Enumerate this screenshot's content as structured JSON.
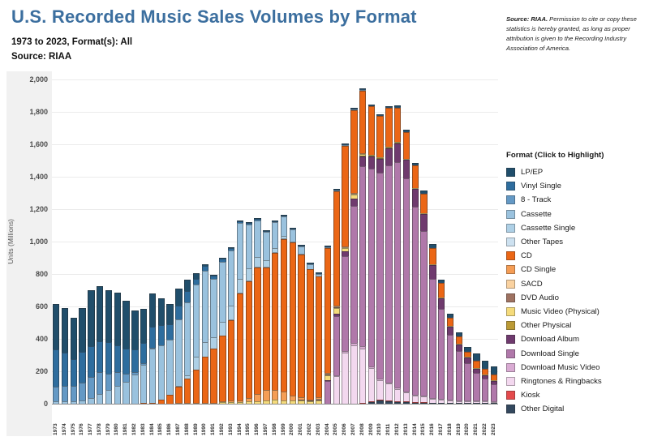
{
  "header": {
    "title": "U.S. Recorded Music Sales Volumes by Format",
    "subtitle_line1": "1973 to 2023, Format(s): All",
    "subtitle_line2": "Source: RIAA"
  },
  "source_note": {
    "bold": "Source: RIAA.",
    "text": " Permission to cite or copy these statistics is hereby granted, as long as proper attribution is given to the Recording Industry Association of America."
  },
  "legend": {
    "title": "Format (Click to Highlight)"
  },
  "chart_data": {
    "type": "bar",
    "stacked": true,
    "stack_order": "first series at top of stack",
    "title": "U.S. Recorded Music Sales Volumes by Format",
    "xlabel": "",
    "ylabel": "Units (Millions)",
    "ylim": [
      0,
      2000
    ],
    "ytick_interval": 200,
    "grid": true,
    "legend_position": "right",
    "categories": [
      1973,
      1974,
      1975,
      1976,
      1977,
      1978,
      1979,
      1980,
      1981,
      1982,
      1983,
      1984,
      1985,
      1986,
      1987,
      1988,
      1989,
      1990,
      1991,
      1992,
      1993,
      1994,
      1995,
      1996,
      1997,
      1998,
      1999,
      2000,
      2001,
      2002,
      2003,
      2004,
      2005,
      2006,
      2007,
      2008,
      2009,
      2010,
      2011,
      2012,
      2013,
      2014,
      2015,
      2016,
      2017,
      2018,
      2019,
      2020,
      2021,
      2022,
      2023
    ],
    "series": [
      {
        "name": "LP/EP",
        "color": "#204e6b",
        "values": [
          280,
          276,
          257,
          273,
          344,
          341,
          318,
          323,
          295,
          244,
          210,
          205,
          167,
          125,
          107,
          72,
          35,
          12,
          4.8,
          2.3,
          1.2,
          1.9,
          2.2,
          2.9,
          2.7,
          3.4,
          2.9,
          2.2,
          2.3,
          1.7,
          1.5,
          1.4,
          1,
          0.9,
          1.3,
          2.9,
          3.5,
          4.2,
          5.5,
          6.1,
          9.4,
          13.1,
          16.9,
          17.2,
          15.6,
          16.7,
          18.8,
          22.9,
          39.7,
          43.5,
          43.2
        ]
      },
      {
        "name": "Vinyl Single",
        "color": "#2e6d9e",
        "values": [
          228,
          204,
          164,
          190,
          190,
          190,
          196,
          164,
          155,
          137,
          125,
          132,
          121,
          94,
          82,
          66,
          37,
          28,
          22,
          19.8,
          15.1,
          11.7,
          10.2,
          10.1,
          7.5,
          5.4,
          5.3,
          4.8,
          5.5,
          4.4,
          3.8,
          3.5,
          1,
          0.7,
          0.6,
          0.4,
          0.9,
          0.7,
          0.5,
          0.4,
          0.5,
          0.4,
          0.5,
          0.4,
          0.4,
          0.3,
          0.3,
          0.3,
          0.3,
          0.3,
          0.3
        ]
      },
      {
        "name": "8 - Track",
        "color": "#6499c5",
        "values": [
          91,
          96.7,
          94.6,
          106.1,
          127.3,
          133.6,
          102.3,
          86.4,
          48.5,
          14.3,
          6,
          0.5,
          0,
          0,
          0,
          0,
          0,
          0,
          0,
          0,
          0,
          0,
          0,
          0,
          0,
          0,
          0,
          0,
          0,
          0,
          0,
          0,
          0,
          0,
          0,
          0,
          0,
          0,
          0,
          0,
          0,
          0,
          0,
          0,
          0,
          0,
          0,
          0,
          0,
          0,
          0
        ]
      },
      {
        "name": "Cassette",
        "color": "#9ac2de",
        "values": [
          15,
          15.3,
          16.2,
          21.8,
          36.9,
          61.3,
          82.8,
          110.2,
          137,
          182.3,
          236.8,
          332,
          339.1,
          344.5,
          410,
          450.1,
          446.2,
          442.2,
          360.1,
          366.4,
          339.5,
          345.4,
          272.6,
          225.3,
          172.6,
          158.5,
          123.6,
          76,
          45,
          31.1,
          17.2,
          5.2,
          2.5,
          0.7,
          0.4,
          0.1,
          0,
          0,
          0,
          0,
          0,
          0,
          0,
          0,
          0,
          0,
          0,
          0,
          0,
          0,
          0
        ]
      },
      {
        "name": "Cassette Single",
        "color": "#aed0e6",
        "values": [
          0,
          0,
          0,
          0,
          0,
          0,
          0,
          0,
          0,
          0,
          0,
          0,
          0,
          0,
          5.1,
          22.5,
          76.2,
          87.4,
          69,
          84.6,
          85.6,
          81.1,
          70.7,
          59.9,
          42.2,
          26.4,
          14.2,
          1.3,
          1,
          0,
          0,
          0,
          0,
          0,
          0,
          0,
          0,
          0,
          0,
          0,
          0,
          0,
          0,
          0,
          0,
          0,
          0,
          0,
          0,
          0,
          0
        ]
      },
      {
        "name": "Other Tapes",
        "color": "#cde1f0",
        "values": [
          0,
          0,
          0,
          0,
          0,
          0,
          0,
          0,
          0,
          0,
          0,
          0,
          0,
          0,
          0,
          0,
          0,
          0,
          0,
          0,
          1,
          1,
          1,
          1,
          1,
          1,
          1,
          0,
          0,
          0,
          0,
          0,
          0,
          0,
          0,
          0,
          0,
          0,
          0,
          0,
          0,
          0,
          0,
          0,
          0,
          0,
          0,
          0,
          0,
          0,
          0
        ]
      },
      {
        "name": "CD",
        "color": "#eb6615",
        "values": [
          0,
          0,
          0,
          0,
          0,
          0,
          0,
          0,
          0,
          0,
          0.8,
          5.8,
          22.6,
          53,
          102.1,
          149.7,
          207.2,
          286.5,
          333.3,
          407.5,
          495.4,
          662.1,
          722.9,
          778.9,
          753.1,
          847,
          938.9,
          942.5,
          881.9,
          803.3,
          746,
          767,
          705.4,
          620,
          511.1,
          384.7,
          296.6,
          253,
          240.8,
          210.9,
          165.4,
          140.8,
          122.9,
          99.4,
          87.5,
          52,
          47.5,
          31.6,
          46.6,
          35.3,
          37.1
        ]
      },
      {
        "name": "CD Single",
        "color": "#f59d55",
        "values": [
          0,
          0,
          0,
          0,
          0,
          0,
          0,
          0,
          0,
          0,
          0,
          0,
          0,
          0,
          1,
          1.6,
          2.9,
          1.1,
          5.7,
          7.3,
          7.8,
          9.3,
          21.5,
          43.2,
          66.7,
          56,
          55.9,
          34.2,
          17.3,
          4.5,
          8.3,
          3.1,
          2.8,
          1.7,
          2.6,
          0.7,
          0,
          0,
          0,
          0,
          0,
          0,
          0,
          0,
          0,
          0,
          0,
          0,
          0,
          0,
          0
        ]
      },
      {
        "name": "SACD",
        "color": "#fad2a0",
        "values": [
          0,
          0,
          0,
          0,
          0,
          0,
          0,
          0,
          0,
          0,
          0,
          0,
          0,
          0,
          0,
          0,
          0,
          0,
          0,
          0,
          0,
          0,
          0,
          0,
          0,
          0,
          0,
          0,
          0,
          0,
          1.3,
          0.8,
          0.7,
          0.6,
          0.2,
          0,
          0,
          0,
          0,
          0,
          0,
          0,
          0,
          0,
          0,
          0,
          0,
          0,
          0,
          0,
          0
        ]
      },
      {
        "name": "DVD Audio",
        "color": "#9e7261",
        "values": [
          0,
          0,
          0,
          0,
          0,
          0,
          0,
          0,
          0,
          0,
          0,
          0,
          0,
          0,
          0,
          0,
          0,
          0,
          0,
          0,
          0,
          0,
          0,
          0,
          0,
          0,
          0,
          0,
          0.3,
          0.4,
          0.4,
          0.3,
          0.2,
          0,
          0,
          0,
          0,
          0,
          0,
          0,
          0,
          0,
          0,
          0,
          0,
          0,
          0,
          0,
          0,
          0,
          0
        ]
      },
      {
        "name": "Music Video (Physical)",
        "color": "#f5db7b",
        "values": [
          0,
          0,
          0,
          0,
          0,
          0,
          0,
          0,
          0,
          0,
          0,
          0,
          0,
          0,
          0,
          0,
          0,
          0,
          0,
          7.6,
          11,
          11.2,
          12.6,
          16.9,
          18.6,
          27.2,
          19.8,
          18.2,
          17.7,
          14.7,
          19.9,
          32.8,
          33.8,
          23.2,
          27.5,
          12.8,
          9,
          6.9,
          4,
          3.2,
          2.7,
          1.9,
          1.4,
          1.2,
          0.9,
          0.7,
          0.5,
          0.4,
          0.4,
          0.3,
          0.3
        ]
      },
      {
        "name": "Other Physical",
        "color": "#bb9a35",
        "values": [
          0,
          0,
          0,
          0,
          0,
          0,
          0,
          0,
          0,
          0,
          0,
          0,
          0,
          0,
          0,
          0,
          0,
          0,
          0,
          0,
          0,
          0,
          0,
          0,
          0,
          0,
          0,
          0,
          0,
          0,
          0,
          0,
          0,
          0,
          0,
          0.5,
          0.5,
          0.5,
          0.5,
          0.5,
          0,
          0,
          0,
          0,
          0,
          0,
          0,
          0,
          0,
          0,
          0
        ]
      },
      {
        "name": "Download Album",
        "color": "#6f3a6e",
        "values": [
          0,
          0,
          0,
          0,
          0,
          0,
          0,
          0,
          0,
          0,
          0,
          0,
          0,
          0,
          0,
          0,
          0,
          0,
          0,
          0,
          0,
          0,
          0,
          0,
          0,
          0,
          0,
          0,
          0,
          0,
          0,
          4.6,
          13.6,
          27.6,
          42.5,
          56.9,
          74.4,
          85.8,
          103.1,
          116.7,
          117.6,
          106.4,
          103.3,
          86.4,
          66.3,
          49.4,
          39.2,
          33.1,
          25.4,
          20.4,
          16.9
        ]
      },
      {
        "name": "Download Single",
        "color": "#b078aa",
        "values": [
          0,
          0,
          0,
          0,
          0,
          0,
          0,
          0,
          0,
          0,
          0,
          0,
          0,
          0,
          0,
          0,
          0,
          0,
          0,
          0,
          0,
          0,
          0,
          0,
          0,
          0,
          0,
          0,
          0,
          0,
          0,
          139.4,
          366.9,
          586.4,
          844,
          1112,
          1219,
          1270,
          1340,
          1392,
          1312,
          1161,
          1016,
          734,
          555,
          400,
          303,
          230,
          170,
          139,
          105
        ]
      },
      {
        "name": "Download Music Video",
        "color": "#d9abd3",
        "values": [
          0,
          0,
          0,
          0,
          0,
          0,
          0,
          0,
          0,
          0,
          0,
          0,
          0,
          0,
          0,
          0,
          0,
          0,
          0,
          0,
          0,
          0,
          0,
          0,
          0,
          0,
          0,
          0,
          0,
          0,
          0,
          0,
          1.9,
          9.9,
          14.2,
          12.7,
          10.5,
          9.2,
          7.1,
          6.7,
          5.9,
          4.6,
          4.1,
          3.3,
          2.7,
          2.1,
          1.6,
          1.3,
          1,
          0.8,
          0.6
        ]
      },
      {
        "name": "Ringtones & Ringbacks",
        "color": "#f3d8ef",
        "values": [
          0,
          0,
          0,
          0,
          0,
          0,
          0,
          0,
          0,
          0,
          0,
          0,
          0,
          0,
          0,
          0,
          0,
          0,
          0,
          0,
          0,
          0,
          0,
          0,
          0,
          0,
          0,
          0,
          0,
          0,
          0,
          0,
          170,
          315,
          362,
          337,
          203.8,
          119.1,
          103.5,
          76.1,
          57.5,
          41.3,
          33.4,
          25.8,
          21,
          15.9,
          12.3,
          11.2,
          9.7,
          7.7,
          6.5
        ]
      },
      {
        "name": "Kiosk",
        "color": "#e44a4c",
        "values": [
          0,
          0,
          0,
          0,
          0,
          0,
          0,
          0,
          0,
          0,
          0,
          0,
          0,
          0,
          0,
          0,
          0,
          0,
          0,
          0,
          0,
          0,
          0,
          0,
          0,
          0,
          0,
          0,
          0,
          0,
          0,
          0,
          0,
          0,
          0,
          0.6,
          1.1,
          2.1,
          2.3,
          2.4,
          2,
          1.5,
          1,
          0,
          0,
          0,
          0,
          0,
          0,
          0,
          0
        ]
      },
      {
        "name": "Other Digital",
        "color": "#33485e",
        "values": [
          0,
          0,
          0,
          0,
          0,
          0,
          0,
          0,
          0,
          0,
          0,
          0,
          0,
          0,
          0,
          0,
          0,
          0,
          0,
          0,
          0,
          0,
          0,
          0,
          0,
          0,
          0,
          0,
          0,
          0,
          0,
          0,
          0,
          0,
          0,
          0,
          10,
          20,
          15,
          10,
          8,
          5,
          4,
          3,
          2,
          1,
          1,
          1,
          1,
          1,
          1
        ]
      }
    ]
  }
}
